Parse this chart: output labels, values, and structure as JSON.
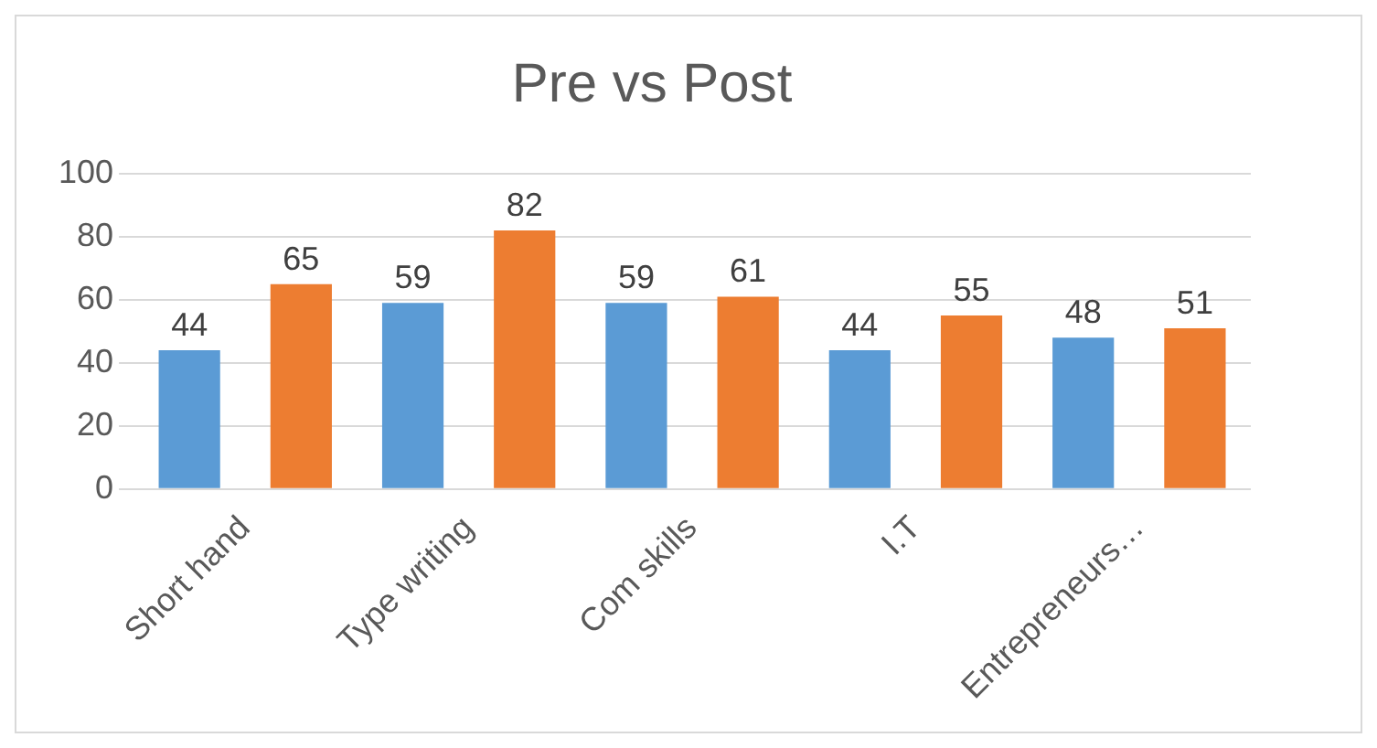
{
  "chart_data": {
    "type": "bar",
    "title": "Pre vs Post",
    "categories": [
      "Short hand",
      "Type writing",
      "Com skills",
      "I.T",
      "Entrepreneurs…"
    ],
    "series": [
      {
        "color": "#5b9bd5",
        "values": [
          44,
          59,
          59,
          44,
          48
        ]
      },
      {
        "color": "#ed7d31",
        "values": [
          65,
          82,
          61,
          55,
          51
        ]
      }
    ],
    "ylim": [
      0,
      100
    ],
    "yticks": [
      0,
      20,
      40,
      60,
      80,
      100
    ],
    "grid": "y",
    "data_labels": true,
    "legend": false
  }
}
